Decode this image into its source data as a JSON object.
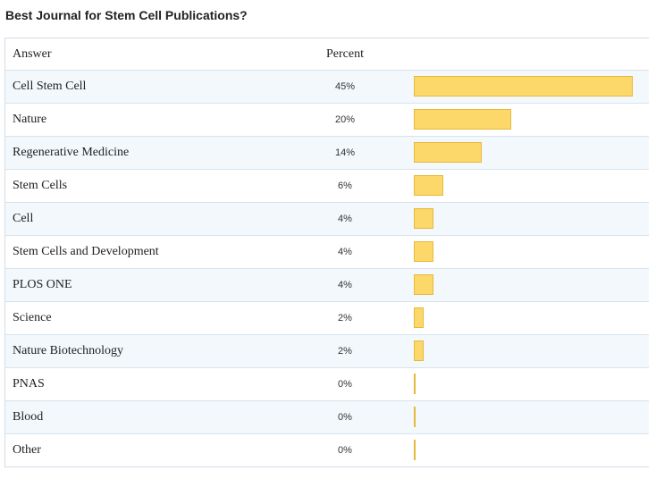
{
  "title": "Best Journal for Stem Cell Publications?",
  "colors": {
    "bar_fill": "#fcd769",
    "bar_border": "#e6b93a",
    "row_alt": "#f3f8fc",
    "border": "#d3dde6"
  },
  "table": {
    "headers": {
      "answer": "Answer",
      "percent": "Percent"
    }
  },
  "chart_data": {
    "type": "bar",
    "orientation": "horizontal",
    "title": "Best Journal for Stem Cell Publications?",
    "categories": [
      "Cell Stem Cell",
      "Nature",
      "Regenerative Medicine",
      "Stem Cells",
      "Cell",
      "Stem Cells and Development",
      "PLOS ONE",
      "Science",
      "Nature Biotechnology",
      "PNAS",
      "Blood",
      "Other"
    ],
    "values": [
      45,
      20,
      14,
      6,
      4,
      4,
      4,
      2,
      2,
      0,
      0,
      0
    ],
    "labels": [
      "45%",
      "20%",
      "14%",
      "6%",
      "4%",
      "4%",
      "4%",
      "2%",
      "2%",
      "0%",
      "0%",
      "0%"
    ],
    "xlabel": "",
    "ylabel": "",
    "xlim": [
      0,
      45
    ],
    "grid": false
  }
}
